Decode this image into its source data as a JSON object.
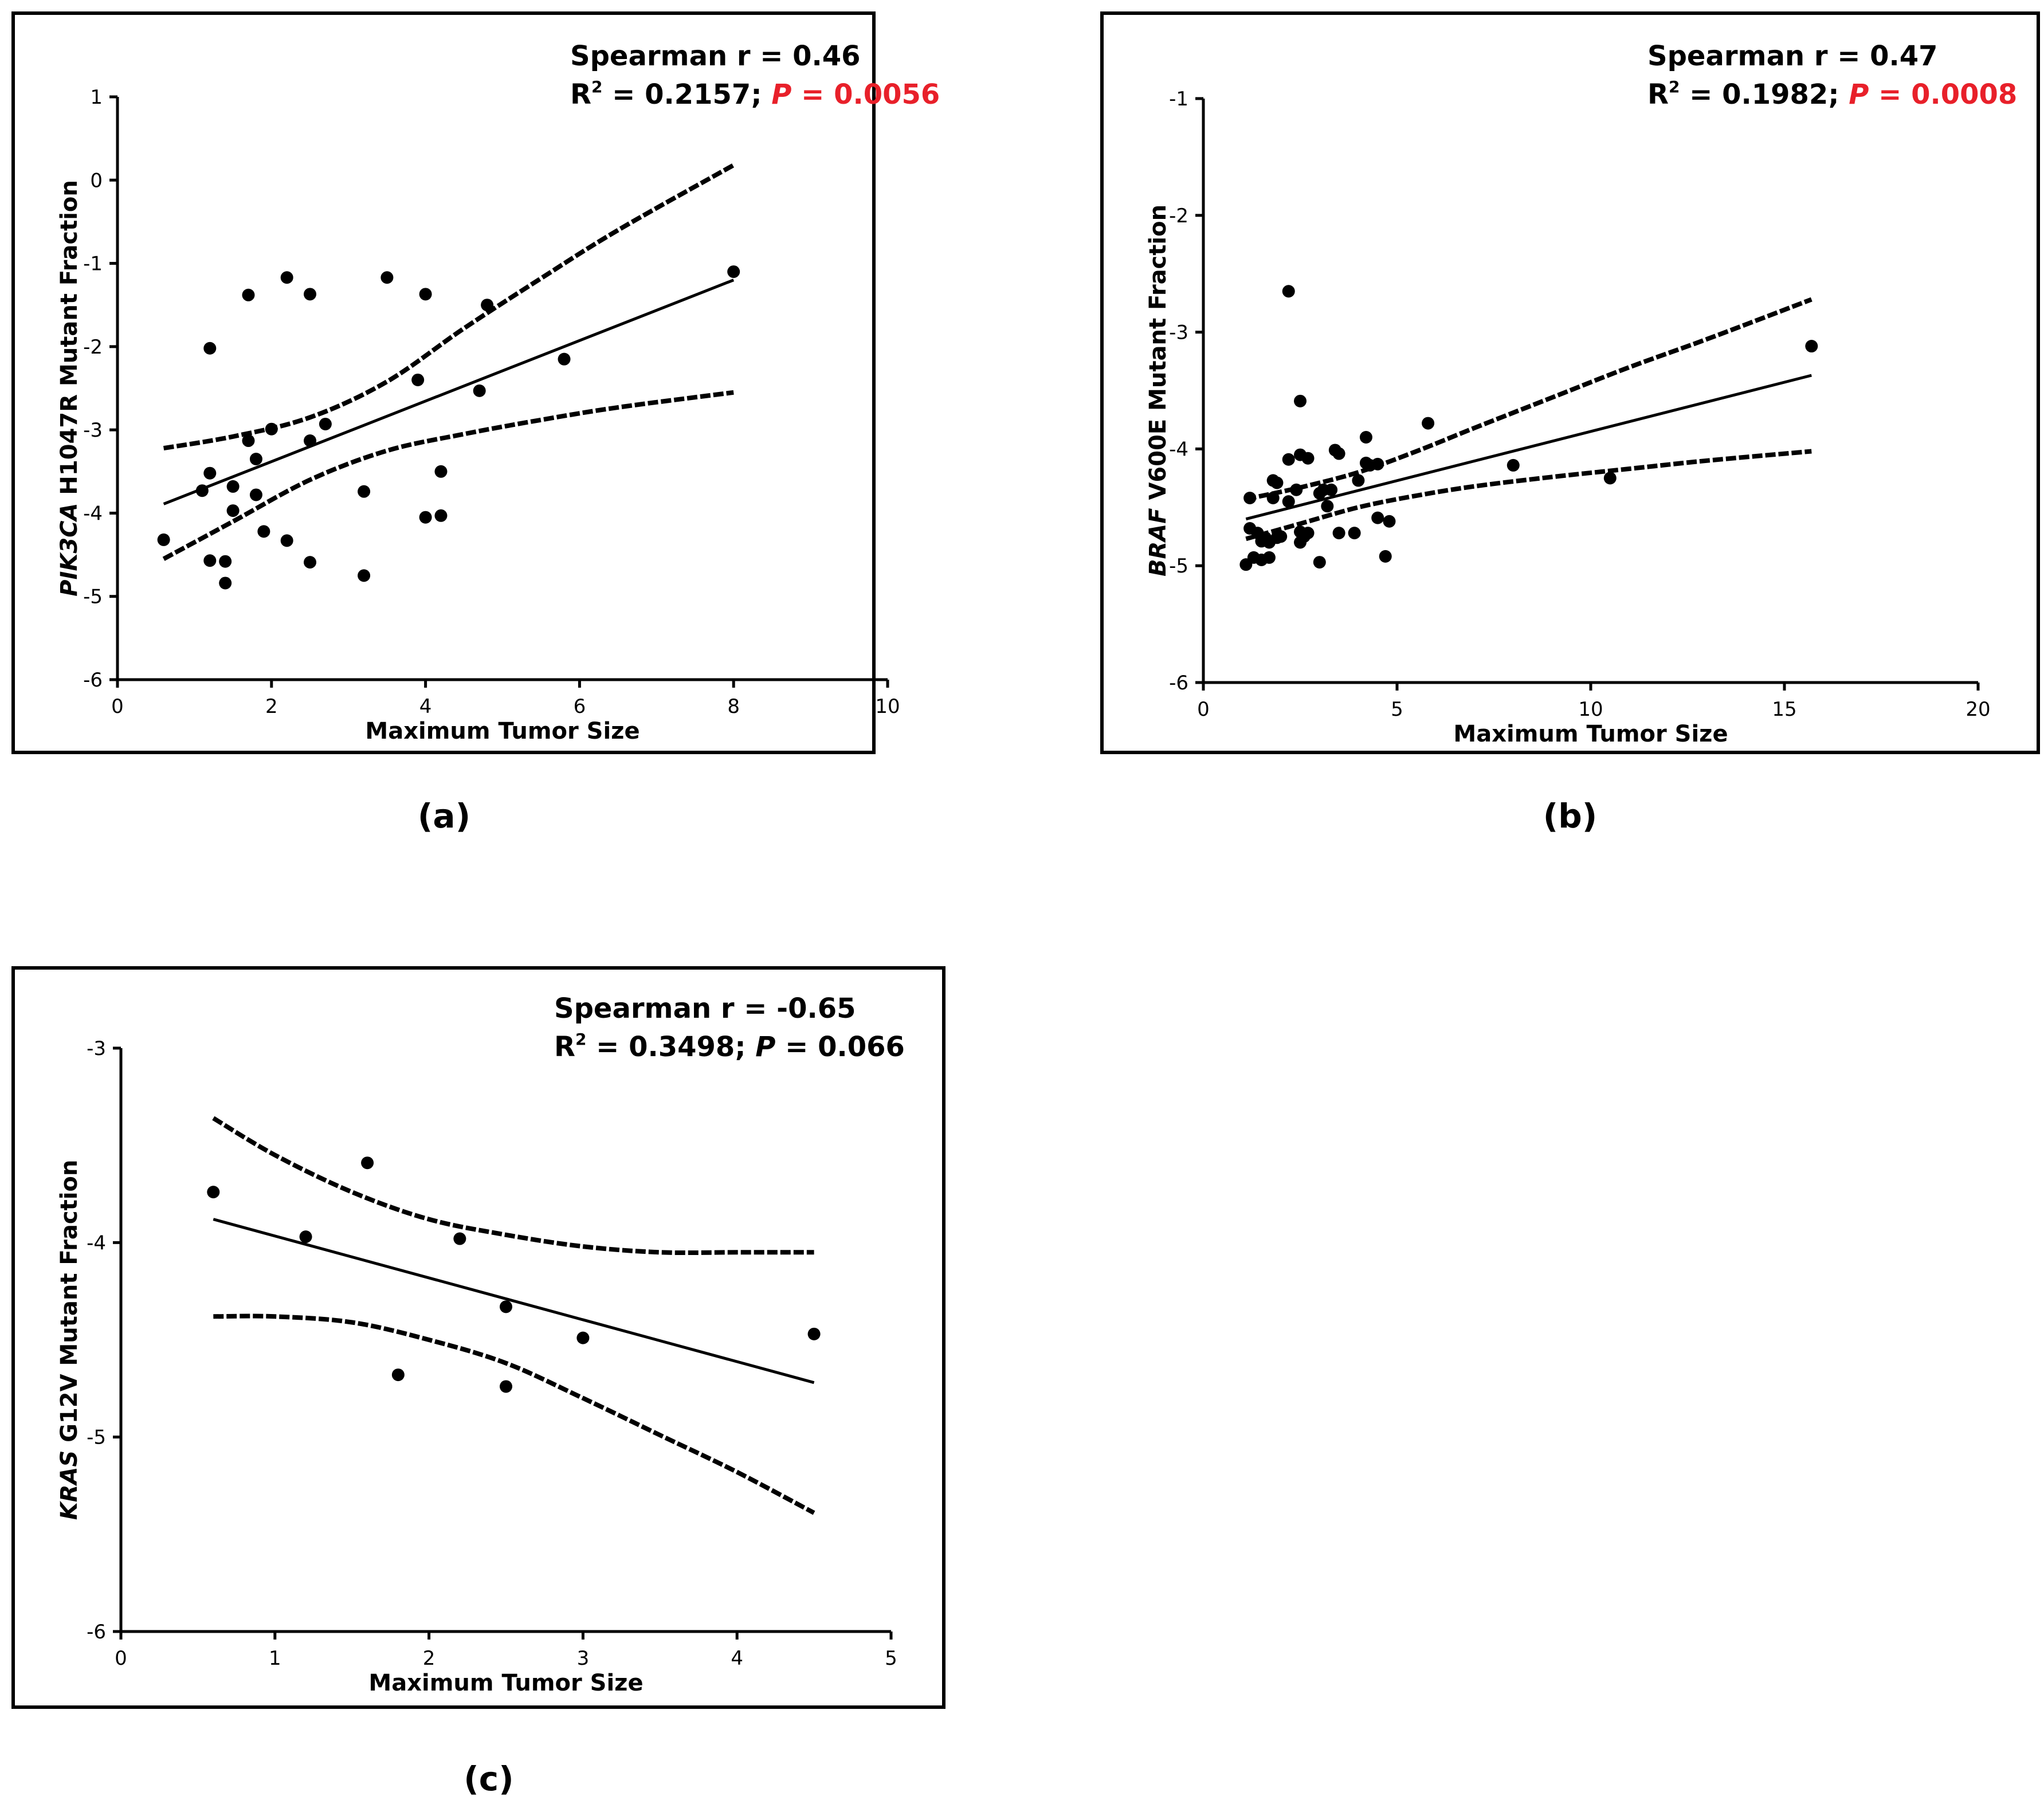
{
  "captions": [
    "(a)",
    "(b)",
    "(c)"
  ],
  "colors": {
    "axis": "#000000",
    "significant_p": "#e8202a",
    "text": "#000000"
  },
  "chart_data": [
    {
      "type": "scatter",
      "panel": "a",
      "xlabel": "Maximum Tumor Size",
      "ylabel_italic": "PIK3CA",
      "ylabel_rest": " H1047R Mutant Fraction",
      "xlim": [
        0,
        10
      ],
      "ylim": [
        -6,
        1
      ],
      "xticks": [
        0,
        2,
        4,
        6,
        8,
        10
      ],
      "yticks": [
        1,
        0,
        -1,
        -2,
        -3,
        -4,
        -5,
        -6
      ],
      "annotation": {
        "line1": "Spearman r = 0.46",
        "r2_prefix": "R",
        "r2_sup": "2",
        "r2_value": " = 0.2157; ",
        "p_label": "P",
        "p_value": " = 0.0056",
        "p_significant": true
      },
      "legend": "top-right",
      "points": [
        [
          0.6,
          -4.32
        ],
        [
          1.1,
          -3.73
        ],
        [
          1.2,
          -2.02
        ],
        [
          1.2,
          -3.52
        ],
        [
          1.2,
          -4.57
        ],
        [
          1.4,
          -4.58
        ],
        [
          1.4,
          -4.84
        ],
        [
          1.5,
          -3.68
        ],
        [
          1.5,
          -3.97
        ],
        [
          1.7,
          -1.38
        ],
        [
          1.7,
          -3.13
        ],
        [
          1.8,
          -3.35
        ],
        [
          1.8,
          -3.78
        ],
        [
          1.9,
          -4.22
        ],
        [
          2.0,
          -2.99
        ],
        [
          2.2,
          -1.17
        ],
        [
          2.2,
          -4.33
        ],
        [
          2.5,
          -1.37
        ],
        [
          2.5,
          -3.13
        ],
        [
          2.5,
          -4.59
        ],
        [
          2.7,
          -2.93
        ],
        [
          3.2,
          -3.74
        ],
        [
          3.2,
          -4.75
        ],
        [
          3.5,
          -1.17
        ],
        [
          3.9,
          -2.4
        ],
        [
          4.0,
          -1.37
        ],
        [
          4.0,
          -4.05
        ],
        [
          4.2,
          -3.5
        ],
        [
          4.2,
          -4.03
        ],
        [
          4.7,
          -2.53
        ],
        [
          4.8,
          -1.5
        ],
        [
          5.8,
          -2.15
        ],
        [
          8.0,
          -1.1
        ]
      ],
      "fit_line": [
        [
          0.6,
          -3.89
        ],
        [
          8.0,
          -1.2
        ]
      ],
      "ci_upper": [
        [
          0.6,
          -3.22
        ],
        [
          1.5,
          -3.08
        ],
        [
          2.5,
          -2.85
        ],
        [
          3.5,
          -2.42
        ],
        [
          4.5,
          -1.78
        ],
        [
          5.5,
          -1.18
        ],
        [
          6.5,
          -0.6
        ],
        [
          8.0,
          0.18
        ]
      ],
      "ci_lower": [
        [
          0.6,
          -4.55
        ],
        [
          1.5,
          -4.1
        ],
        [
          2.5,
          -3.6
        ],
        [
          3.5,
          -3.25
        ],
        [
          4.5,
          -3.05
        ],
        [
          5.5,
          -2.88
        ],
        [
          6.5,
          -2.73
        ],
        [
          8.0,
          -2.55
        ]
      ]
    },
    {
      "type": "scatter",
      "panel": "b",
      "xlabel": "Maximum Tumor Size",
      "ylabel_italic": "BRAF",
      "ylabel_rest": " V600E Mutant Fraction",
      "xlim": [
        0,
        20
      ],
      "ylim": [
        -6,
        -1
      ],
      "xticks": [
        0,
        5,
        10,
        15,
        20
      ],
      "yticks": [
        -1,
        -2,
        -3,
        -4,
        -5,
        -6
      ],
      "annotation": {
        "line1": "Spearman r = 0.47",
        "r2_prefix": "R",
        "r2_sup": "2",
        "r2_value": " = 0.1982; ",
        "p_label": "P",
        "p_value": " = 0.0008",
        "p_significant": true
      },
      "legend": "top-right",
      "points": [
        [
          1.1,
          -4.99
        ],
        [
          1.2,
          -4.42
        ],
        [
          1.2,
          -4.68
        ],
        [
          1.3,
          -4.93
        ],
        [
          1.4,
          -4.72
        ],
        [
          1.5,
          -4.79
        ],
        [
          1.5,
          -4.95
        ],
        [
          1.6,
          -4.76
        ],
        [
          1.7,
          -4.8
        ],
        [
          1.7,
          -4.93
        ],
        [
          1.8,
          -4.42
        ],
        [
          1.8,
          -4.27
        ],
        [
          1.9,
          -4.29
        ],
        [
          1.9,
          -4.76
        ],
        [
          2.0,
          -4.75
        ],
        [
          2.2,
          -2.65
        ],
        [
          2.2,
          -4.09
        ],
        [
          2.2,
          -4.45
        ],
        [
          2.4,
          -4.35
        ],
        [
          2.5,
          -3.59
        ],
        [
          2.5,
          -4.05
        ],
        [
          2.5,
          -4.71
        ],
        [
          2.5,
          -4.8
        ],
        [
          2.6,
          -4.75
        ],
        [
          2.7,
          -4.08
        ],
        [
          2.7,
          -4.72
        ],
        [
          3.0,
          -4.38
        ],
        [
          3.0,
          -4.97
        ],
        [
          3.1,
          -4.35
        ],
        [
          3.2,
          -4.49
        ],
        [
          3.3,
          -4.35
        ],
        [
          3.4,
          -4.01
        ],
        [
          3.5,
          -4.04
        ],
        [
          3.5,
          -4.72
        ],
        [
          3.9,
          -4.72
        ],
        [
          4.0,
          -4.27
        ],
        [
          4.2,
          -3.9
        ],
        [
          4.2,
          -4.12
        ],
        [
          4.3,
          -4.14
        ],
        [
          4.5,
          -4.13
        ],
        [
          4.5,
          -4.59
        ],
        [
          4.7,
          -4.92
        ],
        [
          4.8,
          -4.62
        ],
        [
          5.8,
          -3.78
        ],
        [
          8.0,
          -4.14
        ],
        [
          10.5,
          -4.25
        ],
        [
          15.7,
          -3.12
        ]
      ],
      "fit_line": [
        [
          1.1,
          -4.6
        ],
        [
          15.7,
          -3.37
        ]
      ],
      "ci_upper": [
        [
          1.1,
          -4.43
        ],
        [
          2.5,
          -4.33
        ],
        [
          4.0,
          -4.2
        ],
        [
          5.5,
          -4.02
        ],
        [
          7.0,
          -3.82
        ],
        [
          9.0,
          -3.56
        ],
        [
          11.0,
          -3.3
        ],
        [
          13.0,
          -3.06
        ],
        [
          15.7,
          -2.72
        ]
      ],
      "ci_lower": [
        [
          1.1,
          -4.77
        ],
        [
          2.5,
          -4.64
        ],
        [
          4.0,
          -4.5
        ],
        [
          5.5,
          -4.4
        ],
        [
          7.0,
          -4.32
        ],
        [
          9.0,
          -4.24
        ],
        [
          11.0,
          -4.17
        ],
        [
          13.0,
          -4.1
        ],
        [
          15.7,
          -4.02
        ]
      ]
    },
    {
      "type": "scatter",
      "panel": "c",
      "xlabel": "Maximum Tumor Size",
      "ylabel_italic": "KRAS",
      "ylabel_rest": " G12V Mutant Fraction",
      "xlim": [
        0,
        5
      ],
      "ylim": [
        -6,
        -3
      ],
      "xticks": [
        0,
        1,
        2,
        3,
        4,
        5
      ],
      "yticks": [
        -3,
        -4,
        -5,
        -6
      ],
      "annotation": {
        "line1": "Spearman r = -0.65",
        "r2_prefix": "R",
        "r2_sup": "2",
        "r2_value": " = 0.3498; ",
        "p_label": "P",
        "p_value": " = 0.066",
        "p_significant": false
      },
      "legend": "top-right",
      "points": [
        [
          0.6,
          -3.74
        ],
        [
          1.2,
          -3.97
        ],
        [
          1.6,
          -3.59
        ],
        [
          1.8,
          -4.68
        ],
        [
          2.2,
          -3.98
        ],
        [
          2.5,
          -4.33
        ],
        [
          2.5,
          -4.74
        ],
        [
          3.0,
          -4.49
        ],
        [
          4.5,
          -4.47
        ]
      ],
      "fit_line": [
        [
          0.6,
          -3.88
        ],
        [
          4.5,
          -4.72
        ]
      ],
      "ci_upper": [
        [
          0.6,
          -3.36
        ],
        [
          1.0,
          -3.55
        ],
        [
          1.5,
          -3.74
        ],
        [
          2.0,
          -3.88
        ],
        [
          2.5,
          -3.96
        ],
        [
          3.0,
          -4.02
        ],
        [
          3.5,
          -4.05
        ],
        [
          4.0,
          -4.05
        ],
        [
          4.5,
          -4.05
        ]
      ],
      "ci_lower": [
        [
          0.6,
          -4.38
        ],
        [
          1.0,
          -4.38
        ],
        [
          1.5,
          -4.41
        ],
        [
          2.0,
          -4.5
        ],
        [
          2.5,
          -4.62
        ],
        [
          3.0,
          -4.8
        ],
        [
          3.5,
          -4.99
        ],
        [
          4.0,
          -5.18
        ],
        [
          4.5,
          -5.39
        ]
      ]
    }
  ]
}
